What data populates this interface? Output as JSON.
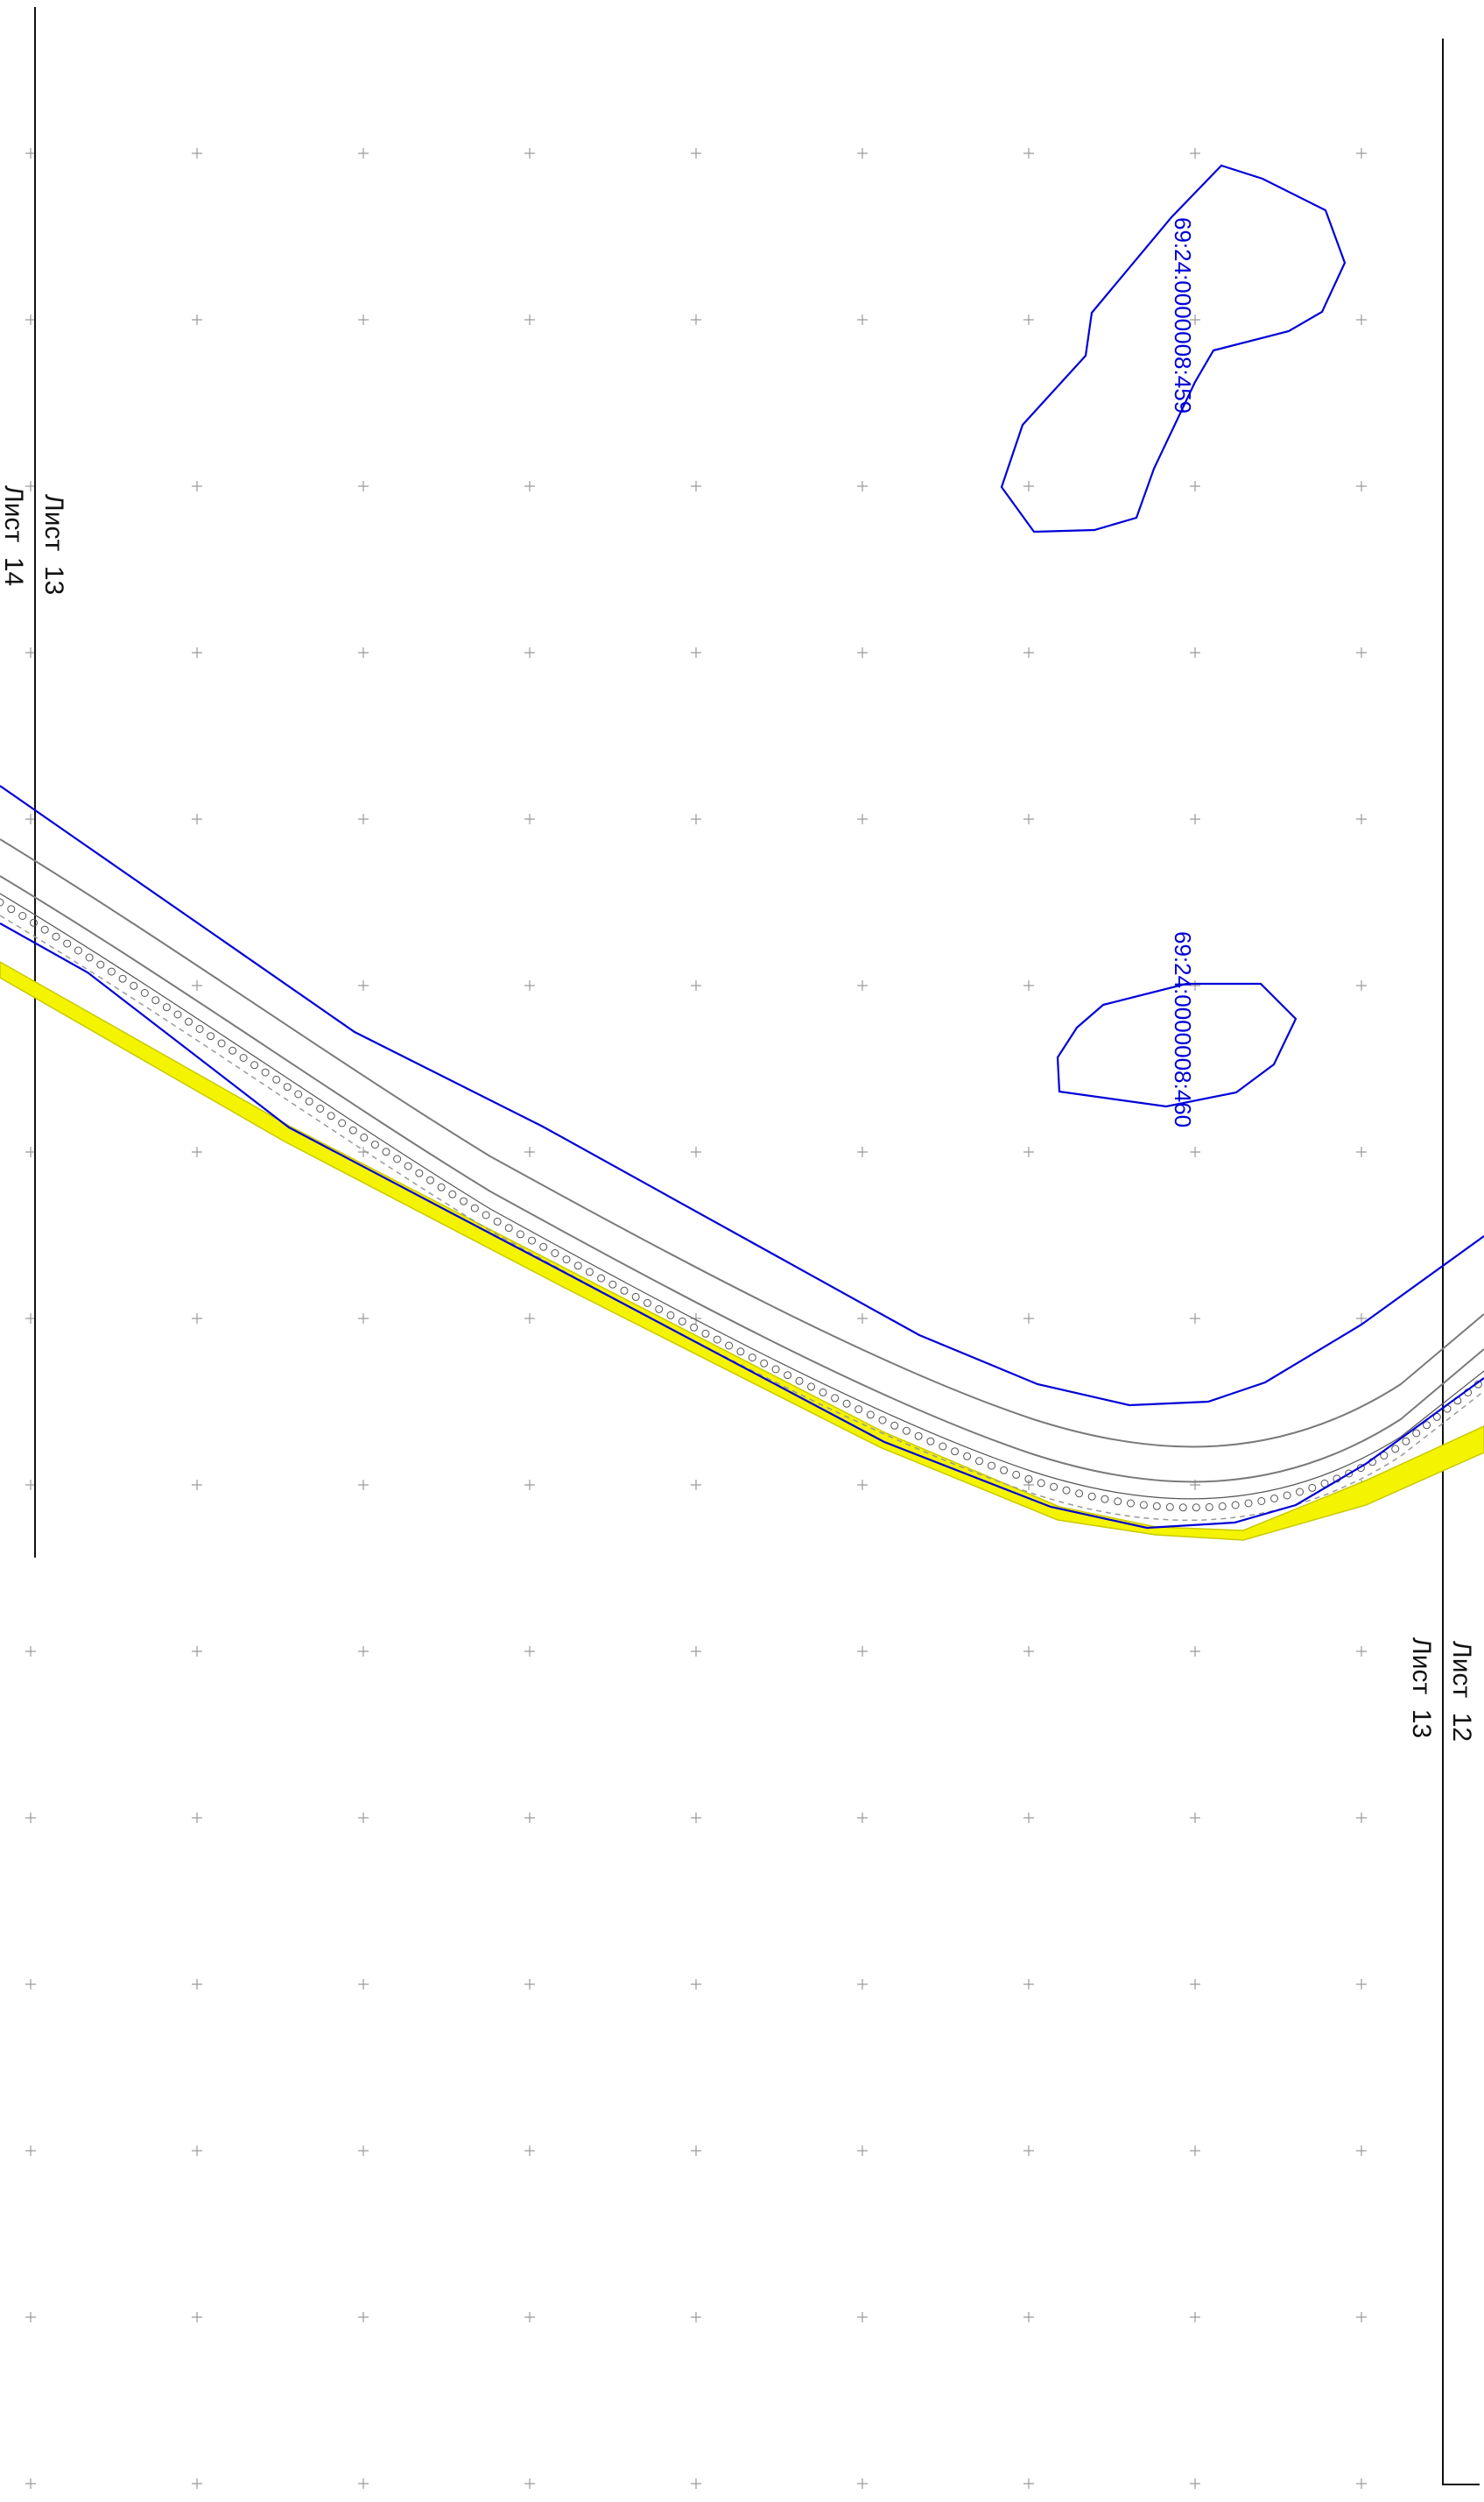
{
  "map": {
    "colors": {
      "parcel": "#0000d8",
      "road": "#7a7a7a",
      "road_highlight": "#f4f400",
      "frame": "#111111",
      "grid": "#9a9a9a"
    },
    "sheet_labels": {
      "left_upper": "Лист  13",
      "left_lower": "Лист  14",
      "right_upper": "Лист  12",
      "right_lower": "Лист  13"
    },
    "parcels": [
      {
        "id": "69:24:0000008:459"
      },
      {
        "id": "69:24:0000008:460"
      }
    ]
  }
}
